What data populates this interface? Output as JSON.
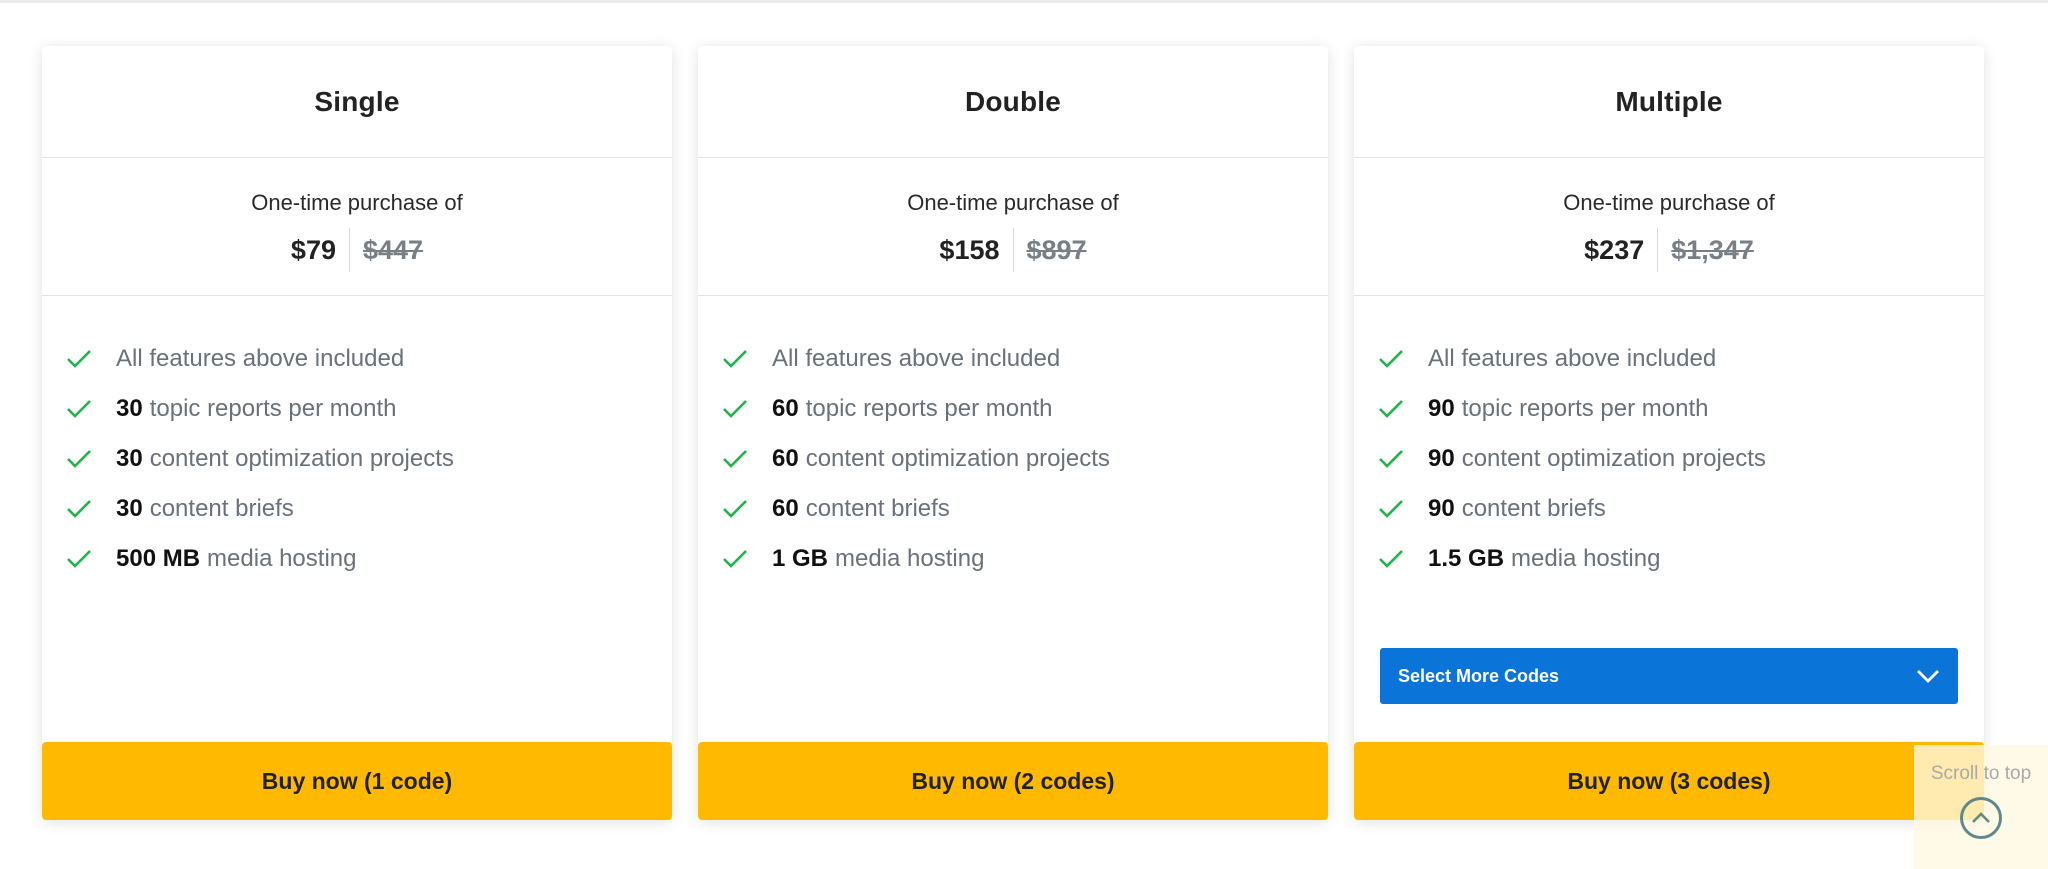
{
  "colors": {
    "accent_blue": "#0a74d8",
    "buy_yellow": "#ffb900",
    "check_green": "#22b24c"
  },
  "plans": [
    {
      "title": "Single",
      "price_label": "One-time purchase of",
      "price": "$79",
      "original_price": "$447",
      "features": [
        {
          "bold": "",
          "text": "All features above included"
        },
        {
          "bold": "30",
          "text": "topic reports per month"
        },
        {
          "bold": "30",
          "text": "content optimization projects"
        },
        {
          "bold": "30",
          "text": "content briefs"
        },
        {
          "bold": "500 MB",
          "text": "media hosting"
        }
      ],
      "buy_label": "Buy now (1 code)"
    },
    {
      "title": "Double",
      "price_label": "One-time purchase of",
      "price": "$158",
      "original_price": "$897",
      "features": [
        {
          "bold": "",
          "text": "All features above included"
        },
        {
          "bold": "60",
          "text": "topic reports per month"
        },
        {
          "bold": "60",
          "text": "content optimization projects"
        },
        {
          "bold": "60",
          "text": "content briefs"
        },
        {
          "bold": "1 GB",
          "text": "media hosting"
        }
      ],
      "buy_label": "Buy now (2 codes)"
    },
    {
      "title": "Multiple",
      "price_label": "One-time purchase of",
      "price": "$237",
      "original_price": "$1,347",
      "features": [
        {
          "bold": "",
          "text": "All features above included"
        },
        {
          "bold": "90",
          "text": "topic reports per month"
        },
        {
          "bold": "90",
          "text": "content optimization projects"
        },
        {
          "bold": "90",
          "text": "content briefs"
        },
        {
          "bold": "1.5 GB",
          "text": "media hosting"
        }
      ],
      "select_label": "Select More Codes",
      "buy_label": "Buy now (3 codes)"
    }
  ],
  "scroll_to_top": {
    "label": "Scroll to top",
    "icon": "chevron-up-icon"
  }
}
